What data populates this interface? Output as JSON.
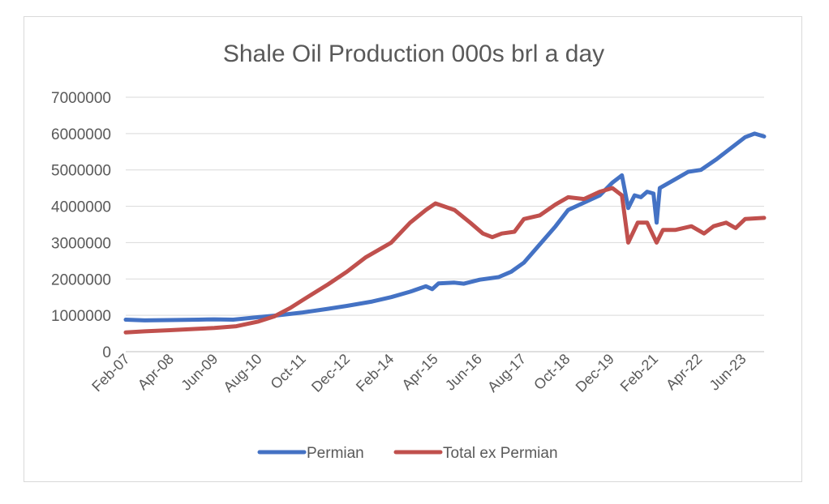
{
  "chart_data": {
    "type": "line",
    "title": "Shale Oil Production 000s brl a day",
    "xlabel": "",
    "ylabel": "",
    "ylim": [
      0,
      7000000
    ],
    "yticks": [
      0,
      1000000,
      2000000,
      3000000,
      4000000,
      5000000,
      6000000,
      7000000
    ],
    "ytick_labels": [
      "0",
      "1000000",
      "2000000",
      "3000000",
      "4000000",
      "5000000",
      "6000000",
      "7000000"
    ],
    "xlim": [
      "2007-02",
      "2023-12"
    ],
    "xtick_labels": [
      "Feb-07",
      "Apr-08",
      "Jun-09",
      "Aug-10",
      "Oct-11",
      "Dec-12",
      "Feb-14",
      "Apr-15",
      "Jun-16",
      "Aug-17",
      "Oct-18",
      "Dec-19",
      "Feb-21",
      "Apr-22",
      "Jun-23"
    ],
    "grid": true,
    "legend_position": "bottom",
    "series": [
      {
        "name": "Permian",
        "color": "#4472c4",
        "points": [
          [
            "2007-02",
            880000
          ],
          [
            "2007-08",
            860000
          ],
          [
            "2008-04",
            870000
          ],
          [
            "2009-01",
            880000
          ],
          [
            "2009-06",
            890000
          ],
          [
            "2009-12",
            880000
          ],
          [
            "2010-08",
            950000
          ],
          [
            "2011-01",
            990000
          ],
          [
            "2011-10",
            1080000
          ],
          [
            "2012-06",
            1180000
          ],
          [
            "2012-12",
            1260000
          ],
          [
            "2013-08",
            1380000
          ],
          [
            "2014-02",
            1500000
          ],
          [
            "2014-08",
            1650000
          ],
          [
            "2015-01",
            1800000
          ],
          [
            "2015-03",
            1720000
          ],
          [
            "2015-05",
            1880000
          ],
          [
            "2015-10",
            1900000
          ],
          [
            "2016-01",
            1870000
          ],
          [
            "2016-06",
            1980000
          ],
          [
            "2016-12",
            2050000
          ],
          [
            "2017-04",
            2200000
          ],
          [
            "2017-08",
            2450000
          ],
          [
            "2018-01",
            2950000
          ],
          [
            "2018-06",
            3450000
          ],
          [
            "2018-10",
            3900000
          ],
          [
            "2019-03",
            4100000
          ],
          [
            "2019-08",
            4300000
          ],
          [
            "2019-12",
            4650000
          ],
          [
            "2020-03",
            4850000
          ],
          [
            "2020-05",
            3950000
          ],
          [
            "2020-07",
            4300000
          ],
          [
            "2020-09",
            4250000
          ],
          [
            "2020-11",
            4400000
          ],
          [
            "2021-01",
            4350000
          ],
          [
            "2021-02",
            3550000
          ],
          [
            "2021-03",
            4500000
          ],
          [
            "2021-07",
            4700000
          ],
          [
            "2021-12",
            4950000
          ],
          [
            "2022-04",
            5000000
          ],
          [
            "2022-09",
            5300000
          ],
          [
            "2022-12",
            5500000
          ],
          [
            "2023-03",
            5700000
          ],
          [
            "2023-06",
            5900000
          ],
          [
            "2023-09",
            6000000
          ],
          [
            "2023-12",
            5920000
          ]
        ]
      },
      {
        "name": "Total ex Permian",
        "color": "#c0504d",
        "points": [
          [
            "2007-02",
            530000
          ],
          [
            "2007-08",
            560000
          ],
          [
            "2008-04",
            590000
          ],
          [
            "2009-01",
            630000
          ],
          [
            "2009-06",
            650000
          ],
          [
            "2010-01",
            700000
          ],
          [
            "2010-08",
            830000
          ],
          [
            "2011-01",
            970000
          ],
          [
            "2011-06",
            1200000
          ],
          [
            "2011-10",
            1420000
          ],
          [
            "2012-06",
            1850000
          ],
          [
            "2012-12",
            2200000
          ],
          [
            "2013-06",
            2600000
          ],
          [
            "2014-02",
            3000000
          ],
          [
            "2014-08",
            3550000
          ],
          [
            "2015-01",
            3900000
          ],
          [
            "2015-04",
            4080000
          ],
          [
            "2015-10",
            3900000
          ],
          [
            "2016-03",
            3550000
          ],
          [
            "2016-07",
            3250000
          ],
          [
            "2016-10",
            3150000
          ],
          [
            "2017-01",
            3250000
          ],
          [
            "2017-05",
            3300000
          ],
          [
            "2017-08",
            3650000
          ],
          [
            "2018-01",
            3750000
          ],
          [
            "2018-06",
            4050000
          ],
          [
            "2018-10",
            4250000
          ],
          [
            "2019-03",
            4200000
          ],
          [
            "2019-08",
            4400000
          ],
          [
            "2019-12",
            4500000
          ],
          [
            "2020-03",
            4300000
          ],
          [
            "2020-05",
            3000000
          ],
          [
            "2020-08",
            3550000
          ],
          [
            "2020-11",
            3550000
          ],
          [
            "2021-02",
            3000000
          ],
          [
            "2021-04",
            3350000
          ],
          [
            "2021-08",
            3350000
          ],
          [
            "2022-01",
            3450000
          ],
          [
            "2022-05",
            3250000
          ],
          [
            "2022-08",
            3450000
          ],
          [
            "2022-12",
            3550000
          ],
          [
            "2023-03",
            3400000
          ],
          [
            "2023-06",
            3650000
          ],
          [
            "2023-12",
            3680000
          ]
        ]
      }
    ]
  }
}
